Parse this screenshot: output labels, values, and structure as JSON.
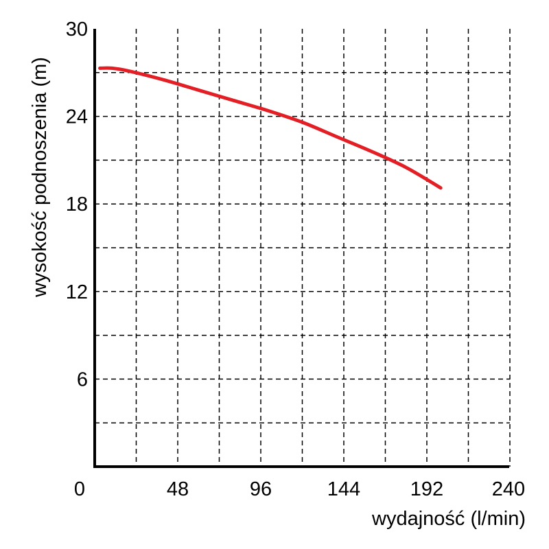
{
  "chart_data": {
    "type": "line",
    "xlabel": "wydajność (l/min)",
    "ylabel": "wysokość podnoszenia (m)",
    "xlim": [
      0,
      240
    ],
    "ylim": [
      0,
      30
    ],
    "x_ticks": [
      "0",
      "48",
      "96",
      "144",
      "192",
      "240"
    ],
    "x_tick_values": [
      0,
      48,
      96,
      144,
      192,
      240
    ],
    "y_ticks": [
      "6",
      "12",
      "18",
      "24",
      "30"
    ],
    "y_tick_values": [
      6,
      12,
      18,
      24,
      30
    ],
    "x_grid": [
      24,
      48,
      72,
      96,
      120,
      144,
      168,
      192,
      216,
      240
    ],
    "y_grid": [
      3,
      6,
      9,
      12,
      15,
      18,
      21,
      24,
      27
    ],
    "grid": true,
    "series": [
      {
        "color": "#e31e24",
        "x": [
          3,
          10,
          20,
          40,
          60,
          80,
          100,
          120,
          140,
          160,
          180,
          200
        ],
        "y": [
          27.3,
          27.3,
          27.1,
          26.5,
          25.8,
          25.1,
          24.4,
          23.6,
          22.6,
          21.6,
          20.5,
          19.1
        ]
      }
    ]
  }
}
